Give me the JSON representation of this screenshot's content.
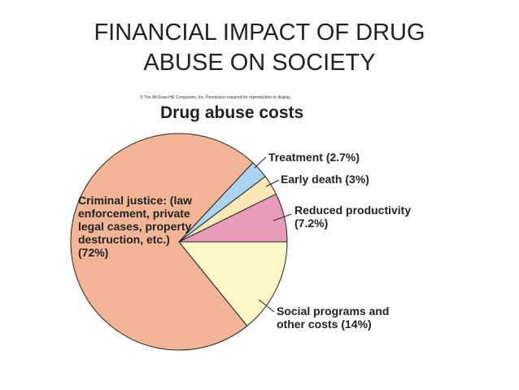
{
  "slide_title": "FINANCIAL IMPACT OF DRUG ABUSE ON SOCIETY",
  "chart_data": {
    "type": "pie",
    "title": "Drug abuse costs",
    "source": "© The McGraw-Hill Companies, Inc. Permission required for reproduction or display.",
    "categories": [
      "Social programs and other costs",
      "Criminal justice: (law enforcement, private legal cases, property destruction, etc.)",
      "Treatment",
      "Early death",
      "Reduced productivity"
    ],
    "values": [
      14,
      72,
      2.7,
      3,
      7.2
    ],
    "value_labels": [
      "(14%)",
      "(72%)",
      "(2.7%)",
      "(3%)",
      "(7.2%)"
    ],
    "colors": [
      "#fdf7c6",
      "#f2b596",
      "#a9d4f2",
      "#fbe8b6",
      "#e99bba"
    ]
  }
}
